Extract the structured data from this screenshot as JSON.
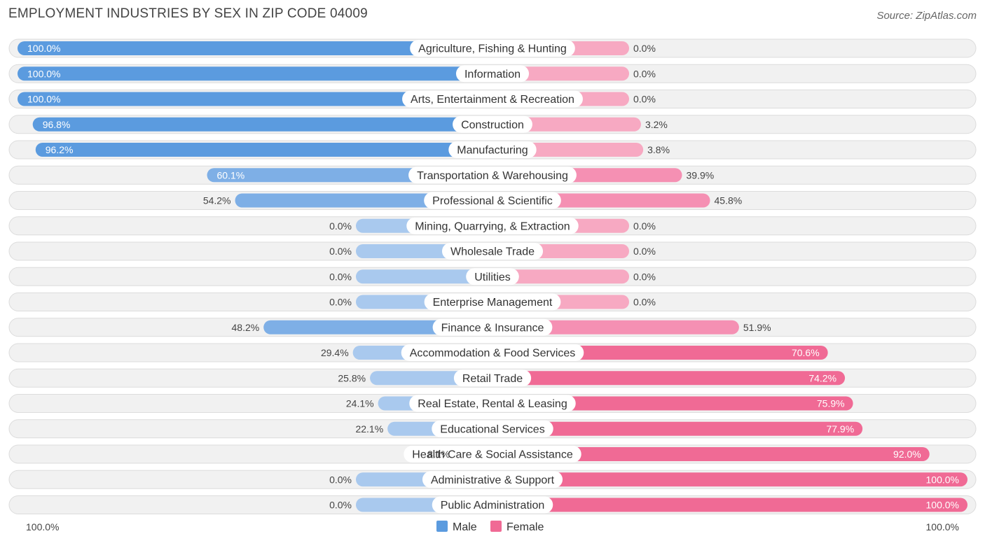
{
  "header": {
    "title": "EMPLOYMENT INDUSTRIES BY SEX IN ZIP CODE 04009",
    "source": "Source: ZipAtlas.com"
  },
  "colors": {
    "male_strong": "#5b9bdf",
    "male_light": "#a9c9ee",
    "female_strong": "#f06a95",
    "female_light": "#f7a9c2"
  },
  "chart_data": {
    "type": "bar",
    "orientation": "horizontal-diverging",
    "title": "EMPLOYMENT INDUSTRIES BY SEX IN ZIP CODE 04009",
    "categories": [
      "Agriculture, Fishing & Hunting",
      "Information",
      "Arts, Entertainment & Recreation",
      "Construction",
      "Manufacturing",
      "Transportation & Warehousing",
      "Professional & Scientific",
      "Mining, Quarrying, & Extraction",
      "Wholesale Trade",
      "Utilities",
      "Enterprise Management",
      "Finance & Insurance",
      "Accommodation & Food Services",
      "Retail Trade",
      "Real Estate, Rental & Leasing",
      "Educational Services",
      "Health Care & Social Assistance",
      "Administrative & Support",
      "Public Administration"
    ],
    "series": [
      {
        "name": "Male",
        "values": [
          100.0,
          100.0,
          100.0,
          96.8,
          96.2,
          60.1,
          54.2,
          0.0,
          0.0,
          0.0,
          0.0,
          48.2,
          29.4,
          25.8,
          24.1,
          22.1,
          8.1,
          0.0,
          0.0
        ],
        "labels": [
          "100.0%",
          "100.0%",
          "100.0%",
          "96.8%",
          "96.2%",
          "60.1%",
          "54.2%",
          "0.0%",
          "0.0%",
          "0.0%",
          "0.0%",
          "48.2%",
          "29.4%",
          "25.8%",
          "24.1%",
          "22.1%",
          "8.1%",
          "0.0%",
          "0.0%"
        ]
      },
      {
        "name": "Female",
        "values": [
          0.0,
          0.0,
          0.0,
          3.2,
          3.8,
          39.9,
          45.8,
          0.0,
          0.0,
          0.0,
          0.0,
          51.9,
          70.6,
          74.2,
          75.9,
          77.9,
          92.0,
          100.0,
          100.0
        ],
        "labels": [
          "0.0%",
          "0.0%",
          "0.0%",
          "3.2%",
          "3.8%",
          "39.9%",
          "45.8%",
          "0.0%",
          "0.0%",
          "0.0%",
          "0.0%",
          "51.9%",
          "70.6%",
          "74.2%",
          "75.9%",
          "77.9%",
          "92.0%",
          "100.0%",
          "100.0%"
        ]
      }
    ],
    "xlim": [
      -100,
      100
    ],
    "axis_labels": {
      "left": "100.0%",
      "right": "100.0%"
    },
    "legend": {
      "position": "bottom-center",
      "entries": [
        "Male",
        "Female"
      ]
    }
  }
}
